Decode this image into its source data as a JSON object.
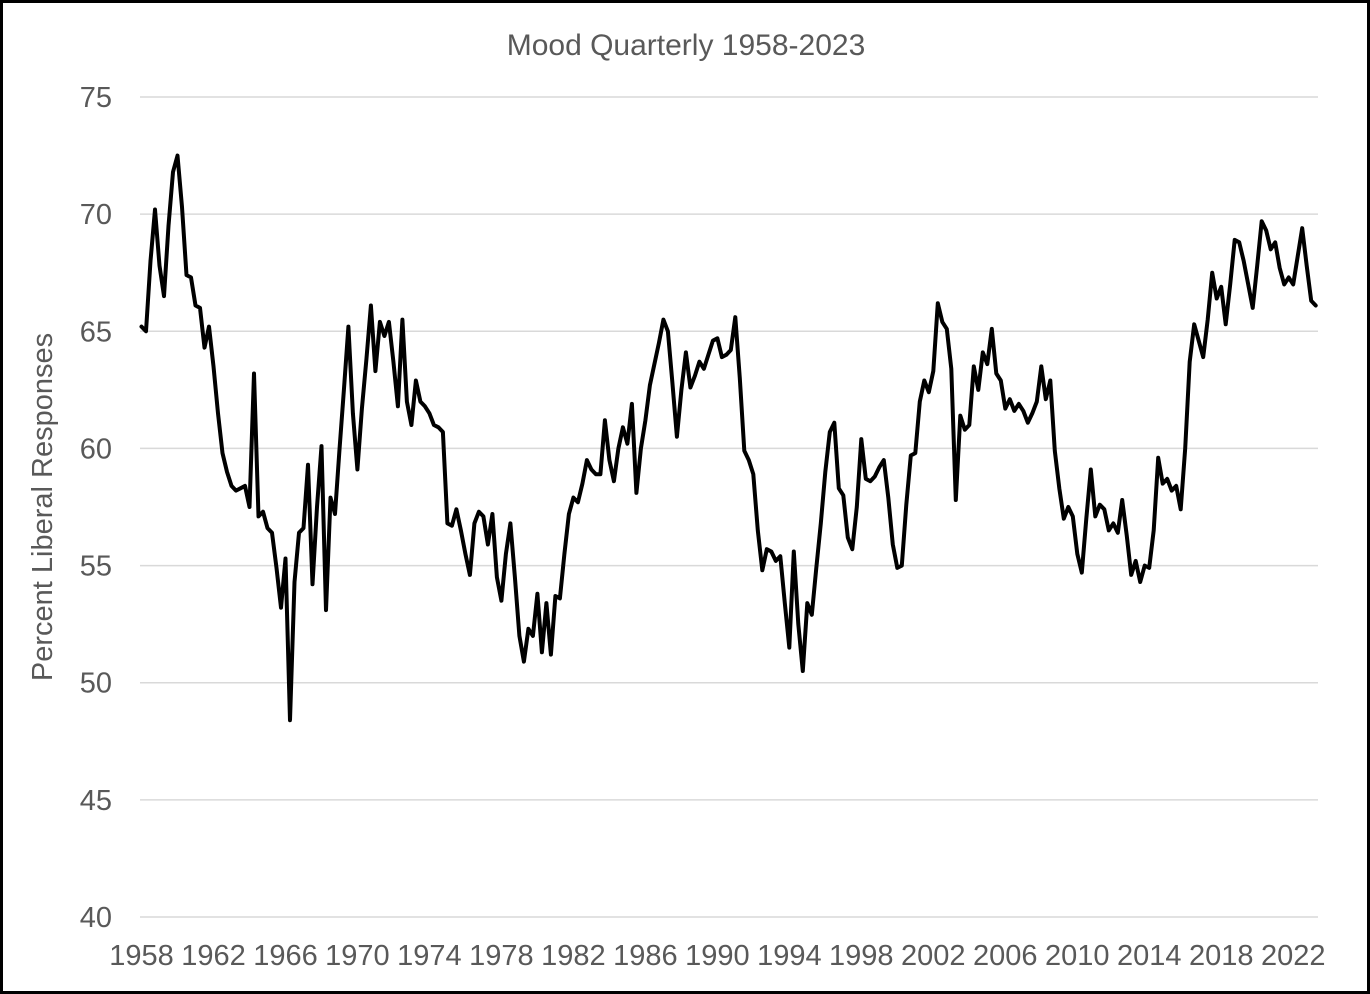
{
  "styles": {
    "background": "#ffffff",
    "border_color": "#000000",
    "text_color": "#595959",
    "gridline_color": "#d9d9d9",
    "line_color": "#000000"
  },
  "chart_data": {
    "type": "line",
    "title": "Mood Quarterly 1958-2023",
    "xlabel": "",
    "ylabel": "Percent Liberal Responses",
    "legend": "none",
    "grid": "horizontal-only",
    "ylim": [
      40,
      75
    ],
    "yticks": [
      40,
      45,
      50,
      55,
      60,
      65,
      70,
      75
    ],
    "xtick_labels": [
      "1958",
      "1962",
      "1966",
      "1970",
      "1974",
      "1978",
      "1982",
      "1986",
      "1990",
      "1994",
      "1998",
      "2002",
      "2006",
      "2010",
      "2014",
      "2018",
      "2022"
    ],
    "xtick_every_n_points": 16,
    "frequency": "quarterly",
    "start": "1958Q1",
    "end": "2023Q2",
    "series": [
      {
        "name": "Percent Liberal Responses",
        "values": [
          65.2,
          65.0,
          68.0,
          70.2,
          67.8,
          66.5,
          69.5,
          71.8,
          72.5,
          70.3,
          67.4,
          67.3,
          66.1,
          66.0,
          64.3,
          65.2,
          63.5,
          61.5,
          59.8,
          59.0,
          58.4,
          58.2,
          58.3,
          58.4,
          57.5,
          63.2,
          57.1,
          57.3,
          56.6,
          56.4,
          54.9,
          53.2,
          55.3,
          48.4,
          54.3,
          56.4,
          56.6,
          59.3,
          54.2,
          57.5,
          60.1,
          53.1,
          57.9,
          57.2,
          59.9,
          62.5,
          65.2,
          61.5,
          59.1,
          61.7,
          63.8,
          66.1,
          63.3,
          65.4,
          64.8,
          65.4,
          63.7,
          61.8,
          65.5,
          62.0,
          61.0,
          62.9,
          62.0,
          61.8,
          61.5,
          61.0,
          60.9,
          60.7,
          56.8,
          56.7,
          57.4,
          56.5,
          55.5,
          54.6,
          56.8,
          57.3,
          57.1,
          55.9,
          57.2,
          54.5,
          53.5,
          55.5,
          56.8,
          54.5,
          52.0,
          50.9,
          52.3,
          52.0,
          53.8,
          51.3,
          53.4,
          51.2,
          53.7,
          53.6,
          55.5,
          57.2,
          57.9,
          57.7,
          58.5,
          59.5,
          59.1,
          58.9,
          58.9,
          61.2,
          59.5,
          58.6,
          60.0,
          60.9,
          60.2,
          61.9,
          58.1,
          60.0,
          61.2,
          62.7,
          63.6,
          64.5,
          65.5,
          65.0,
          62.8,
          60.5,
          62.5,
          64.1,
          62.6,
          63.1,
          63.7,
          63.4,
          64.0,
          64.6,
          64.7,
          63.9,
          64.0,
          64.2,
          65.6,
          63.0,
          59.9,
          59.5,
          58.9,
          56.5,
          54.8,
          55.7,
          55.6,
          55.2,
          55.4,
          53.4,
          51.5,
          55.6,
          52.5,
          50.5,
          53.4,
          52.9,
          54.9,
          56.8,
          59.0,
          60.7,
          61.1,
          58.3,
          58.0,
          56.2,
          55.7,
          57.5,
          60.4,
          58.7,
          58.6,
          58.8,
          59.2,
          59.5,
          57.9,
          55.9,
          54.9,
          55.0,
          57.6,
          59.7,
          59.8,
          62.0,
          62.9,
          62.4,
          63.3,
          66.2,
          65.4,
          65.1,
          63.4,
          57.8,
          61.4,
          60.8,
          61.0,
          63.5,
          62.5,
          64.1,
          63.6,
          65.1,
          63.2,
          62.9,
          61.7,
          62.1,
          61.6,
          61.9,
          61.6,
          61.1,
          61.5,
          62.0,
          63.5,
          62.1,
          62.9,
          59.9,
          58.3,
          57.0,
          57.5,
          57.1,
          55.5,
          54.7,
          57.0,
          59.1,
          57.1,
          57.6,
          57.4,
          56.5,
          56.8,
          56.4,
          57.8,
          56.3,
          54.6,
          55.2,
          54.3,
          55.0,
          54.9,
          56.5,
          59.6,
          58.5,
          58.7,
          58.2,
          58.4,
          57.4,
          60.0,
          63.7,
          65.3,
          64.6,
          63.9,
          65.5,
          67.5,
          66.4,
          66.9,
          65.3,
          67.0,
          68.9,
          68.8,
          68.0,
          67.0,
          66.0,
          67.8,
          69.7,
          69.3,
          68.5,
          68.8,
          67.7,
          67.0,
          67.3,
          67.0,
          68.2,
          69.4,
          67.8,
          66.3,
          66.1
        ]
      }
    ]
  }
}
